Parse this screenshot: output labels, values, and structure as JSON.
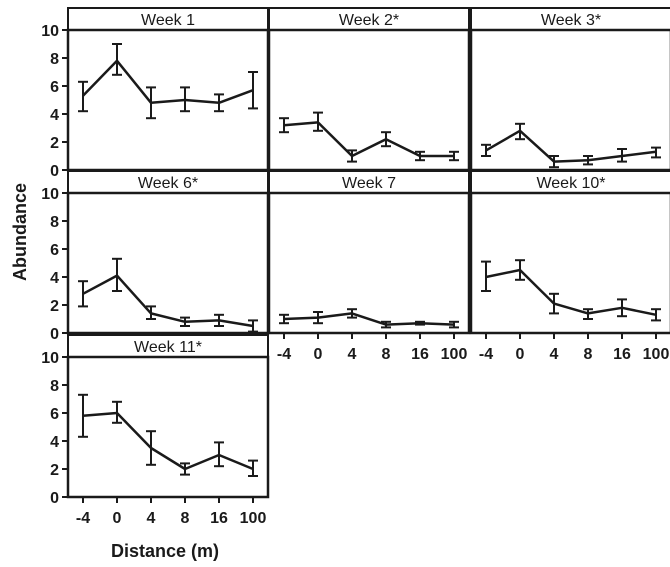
{
  "chart_data": {
    "type": "line",
    "xlabel": "Distance (m)",
    "ylabel": "Abundance",
    "categories": [
      "-4",
      "0",
      "4",
      "8",
      "16",
      "100"
    ],
    "yticks": [
      0,
      2,
      4,
      6,
      8,
      10
    ],
    "ylim": [
      0,
      10
    ],
    "grid": false,
    "line_color": "#1a1a1a",
    "panels": [
      {
        "title": "Week 1",
        "mean": [
          5.3,
          7.8,
          4.8,
          5.0,
          4.8,
          5.7
        ],
        "lower": [
          4.2,
          6.8,
          3.7,
          4.2,
          4.2,
          4.4
        ],
        "upper": [
          6.3,
          9.0,
          5.9,
          5.9,
          5.4,
          7.0
        ]
      },
      {
        "title": "Week 2*",
        "mean": [
          3.2,
          3.4,
          1.0,
          2.2,
          1.0,
          1.0
        ],
        "lower": [
          2.7,
          2.8,
          0.6,
          1.7,
          0.7,
          0.7
        ],
        "upper": [
          3.7,
          4.1,
          1.4,
          2.7,
          1.3,
          1.3
        ]
      },
      {
        "title": "Week 3*",
        "mean": [
          1.4,
          2.8,
          0.6,
          0.7,
          1.0,
          1.3
        ],
        "lower": [
          1.0,
          2.2,
          0.2,
          0.4,
          0.6,
          0.9
        ],
        "upper": [
          1.8,
          3.3,
          1.0,
          1.0,
          1.5,
          1.6
        ]
      },
      {
        "title": "Week 6*",
        "mean": [
          2.8,
          4.1,
          1.4,
          0.8,
          0.9,
          0.5
        ],
        "lower": [
          1.9,
          3.0,
          1.0,
          0.5,
          0.5,
          0.1
        ],
        "upper": [
          3.7,
          5.3,
          1.9,
          1.1,
          1.3,
          0.9
        ]
      },
      {
        "title": "Week 7",
        "mean": [
          1.0,
          1.1,
          1.4,
          0.6,
          0.7,
          0.6
        ],
        "lower": [
          0.7,
          0.7,
          1.1,
          0.4,
          0.6,
          0.4
        ],
        "upper": [
          1.3,
          1.5,
          1.7,
          0.8,
          0.8,
          0.8
        ]
      },
      {
        "title": "Week 10*",
        "mean": [
          4.0,
          4.5,
          2.1,
          1.4,
          1.8,
          1.3
        ],
        "lower": [
          3.0,
          3.8,
          1.4,
          1.0,
          1.2,
          0.9
        ],
        "upper": [
          5.1,
          5.2,
          2.8,
          1.7,
          2.4,
          1.7
        ]
      },
      {
        "title": "Week 11*",
        "mean": [
          5.8,
          6.0,
          3.5,
          2.0,
          3.0,
          2.0
        ],
        "lower": [
          4.3,
          5.3,
          2.3,
          1.6,
          2.2,
          1.5
        ],
        "upper": [
          7.3,
          6.8,
          4.7,
          2.4,
          3.9,
          2.6
        ]
      }
    ]
  }
}
